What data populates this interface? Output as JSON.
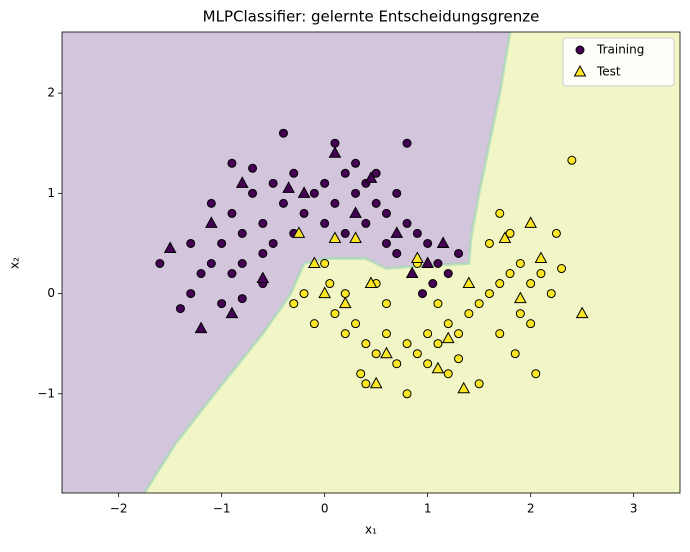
{
  "chart_data": {
    "type": "scatter",
    "title": "MLPClassifier: gelernte Entscheidungsgrenze",
    "xlabel": "x₁",
    "ylabel": "x₂",
    "xlim": [
      -2.55,
      3.45
    ],
    "ylim": [
      -1.99,
      2.61
    ],
    "xticks": [
      {
        "value": -2,
        "label": "−2"
      },
      {
        "value": -1,
        "label": "−1"
      },
      0,
      1,
      2,
      3
    ],
    "yticks": [
      {
        "value": -1,
        "label": "−1"
      },
      0,
      1,
      2
    ],
    "legend": "upper right",
    "class_colors": [
      "#440154",
      "#fde725"
    ],
    "region_colors": [
      "#d2c5dc",
      "#f2f6c6"
    ],
    "decision_boundary": {
      "x": [
        1.8,
        1.7,
        1.6,
        1.5,
        1.42,
        1.4,
        1.0,
        0.6,
        0.4,
        0.0,
        -0.2,
        -0.33,
        -0.6,
        -1.07,
        -1.45,
        -1.75
      ],
      "y": [
        2.61,
        2.0,
        1.5,
        1.0,
        0.55,
        0.3,
        0.28,
        0.25,
        0.35,
        0.35,
        0.3,
        0.0,
        -0.4,
        -1.0,
        -1.5,
        -1.99
      ]
    },
    "series": [
      {
        "name": "Training",
        "marker": "circle",
        "legend_color": "#440154",
        "x": [
          -1.0,
          -0.9,
          -0.8,
          -0.7,
          -0.6,
          -0.5,
          -0.4,
          -0.3,
          -0.2,
          -0.1,
          0.0,
          0.1,
          0.2,
          0.3,
          0.4,
          0.5,
          0.6,
          0.7,
          0.8,
          0.9,
          1.0,
          1.1,
          1.2,
          1.05,
          0.95,
          -1.1,
          -1.2,
          -1.3,
          -1.4,
          -1.0,
          -0.9,
          -0.8,
          -0.6,
          -0.5,
          -0.3,
          0.0,
          0.2,
          0.4,
          0.6,
          -0.9,
          -0.4,
          0.1,
          0.8,
          0.3,
          -0.7,
          0.5,
          -1.6,
          -1.3,
          -1.1,
          -0.8,
          -0.6,
          1.3,
          0.7,
          0.0,
          0.1,
          0.2,
          0.3,
          0.4,
          0.5,
          0.6,
          0.7,
          0.8,
          0.9,
          1.0,
          1.1,
          1.2,
          1.3,
          1.4,
          1.5,
          1.6,
          1.7,
          1.8,
          1.9,
          2.0,
          2.1,
          2.2,
          1.9,
          2.0,
          1.7,
          0.4,
          0.8,
          1.2,
          1.5,
          2.05,
          -0.3,
          -0.2,
          -0.1,
          0.05,
          0.5,
          0.9,
          0.2,
          1.8,
          1.7,
          2.4,
          2.3,
          2.25,
          1.6,
          0.35,
          1.0,
          1.3,
          0.6,
          1.1,
          1.85
        ],
        "y": [
          0.5,
          0.8,
          0.6,
          1.0,
          0.7,
          1.1,
          0.9,
          1.2,
          0.8,
          1.0,
          1.1,
          0.9,
          1.2,
          1.0,
          1.1,
          0.9,
          0.8,
          1.0,
          0.7,
          0.6,
          0.5,
          0.3,
          0.2,
          0.1,
          0.0,
          0.3,
          0.2,
          0.0,
          -0.15,
          -0.1,
          0.2,
          0.3,
          0.4,
          0.5,
          0.6,
          0.7,
          0.6,
          0.7,
          0.5,
          1.3,
          1.6,
          1.5,
          1.5,
          1.3,
          1.25,
          1.2,
          0.3,
          0.5,
          0.9,
          -0.05,
          0.1,
          0.4,
          0.4,
          0.3,
          -0.2,
          -0.4,
          -0.3,
          -0.5,
          -0.6,
          -0.4,
          -0.7,
          -0.5,
          -0.6,
          -0.4,
          -0.5,
          -0.3,
          -0.4,
          -0.2,
          -0.1,
          0.0,
          0.1,
          0.2,
          0.3,
          0.1,
          0.2,
          0.0,
          -0.2,
          -0.3,
          -0.4,
          -0.9,
          -1.0,
          -0.8,
          -0.9,
          -0.8,
          -0.1,
          0.0,
          -0.3,
          0.1,
          0.1,
          0.3,
          0.0,
          0.6,
          0.8,
          1.33,
          0.25,
          0.6,
          0.5,
          -0.8,
          -0.7,
          -0.65,
          -0.1,
          -0.1,
          -0.6
        ],
        "class": [
          0,
          0,
          0,
          0,
          0,
          0,
          0,
          0,
          0,
          0,
          0,
          0,
          0,
          0,
          0,
          0,
          0,
          0,
          0,
          0,
          0,
          0,
          0,
          0,
          0,
          0,
          0,
          0,
          0,
          0,
          0,
          0,
          0,
          0,
          0,
          0,
          0,
          0,
          0,
          0,
          0,
          0,
          0,
          0,
          0,
          0,
          0,
          0,
          0,
          0,
          0,
          0,
          0,
          1,
          1,
          1,
          1,
          1,
          1,
          1,
          1,
          1,
          1,
          1,
          1,
          1,
          1,
          1,
          1,
          1,
          1,
          1,
          1,
          1,
          1,
          1,
          1,
          1,
          1,
          1,
          1,
          1,
          1,
          1,
          1,
          1,
          1,
          1,
          1,
          1,
          1,
          1,
          1,
          1,
          1,
          1,
          1,
          1,
          1,
          1,
          1,
          1,
          1
        ]
      },
      {
        "name": "Test",
        "marker": "triangle",
        "legend_color": "#fde725",
        "x": [
          -1.1,
          -0.8,
          -0.2,
          0.1,
          0.7,
          1.0,
          1.15,
          -1.5,
          -1.2,
          -0.6,
          0.3,
          0.85,
          -0.9,
          0.45,
          -0.35,
          -0.25,
          0.1,
          0.3,
          -0.1,
          0.0,
          0.5,
          1.35,
          1.75,
          2.0,
          2.5,
          2.1,
          0.6,
          1.1,
          1.9,
          0.9,
          1.4,
          0.45,
          1.2,
          0.2
        ],
        "y": [
          0.7,
          1.1,
          1.0,
          1.4,
          0.6,
          0.3,
          0.5,
          0.45,
          -0.35,
          0.15,
          0.8,
          0.2,
          -0.2,
          1.15,
          1.05,
          0.6,
          0.55,
          0.55,
          0.3,
          0.0,
          -0.9,
          -0.95,
          0.55,
          0.7,
          -0.2,
          0.35,
          -0.6,
          -0.75,
          -0.05,
          0.35,
          0.1,
          0.1,
          -0.45,
          -0.1
        ],
        "class": [
          0,
          0,
          0,
          0,
          0,
          0,
          0,
          0,
          0,
          0,
          0,
          0,
          0,
          0,
          0,
          1,
          1,
          1,
          1,
          1,
          1,
          1,
          1,
          1,
          1,
          1,
          1,
          1,
          1,
          1,
          1,
          1,
          1,
          1
        ]
      }
    ]
  }
}
